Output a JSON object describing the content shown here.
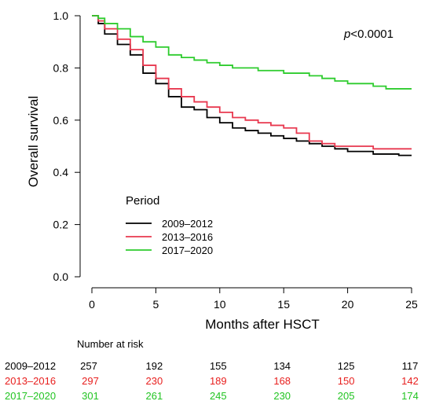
{
  "chart_data": {
    "type": "line",
    "title": "",
    "xlabel": "Months after HSCT",
    "ylabel": "Overall survival",
    "xlim": [
      0,
      25
    ],
    "ylim": [
      0,
      1
    ],
    "xticks": [
      0,
      5,
      10,
      15,
      20,
      25
    ],
    "yticks": [
      0.0,
      0.2,
      0.4,
      0.6,
      0.8,
      1.0
    ],
    "ytick_labels": [
      "0.0",
      "0.2",
      "0.4",
      "0.6",
      "0.8",
      "1.0"
    ],
    "grid": false,
    "annotation": {
      "p_italic": "p",
      "p_rest": "<0.0001"
    },
    "legend": {
      "title": "Period",
      "position": "lower-left"
    },
    "series": [
      {
        "name": "2009–2012",
        "color": "#000000",
        "x": [
          0,
          0.5,
          1,
          2,
          3,
          4,
          5,
          6,
          7,
          8,
          9,
          10,
          11,
          12,
          13,
          14,
          15,
          16,
          17,
          18,
          19,
          20,
          21,
          22,
          23,
          24,
          25
        ],
        "y": [
          1.0,
          0.97,
          0.93,
          0.89,
          0.85,
          0.78,
          0.74,
          0.69,
          0.65,
          0.64,
          0.61,
          0.59,
          0.57,
          0.56,
          0.55,
          0.54,
          0.53,
          0.52,
          0.51,
          0.5,
          0.49,
          0.48,
          0.48,
          0.47,
          0.47,
          0.465,
          0.465
        ]
      },
      {
        "name": "2013–2016",
        "color": "#e8384f",
        "x": [
          0,
          0.5,
          1,
          2,
          3,
          4,
          5,
          6,
          7,
          8,
          9,
          10,
          11,
          12,
          13,
          14,
          15,
          16,
          17,
          18,
          19,
          20,
          21,
          22,
          23,
          24,
          25
        ],
        "y": [
          1.0,
          0.98,
          0.95,
          0.91,
          0.87,
          0.81,
          0.76,
          0.72,
          0.69,
          0.67,
          0.65,
          0.63,
          0.61,
          0.6,
          0.59,
          0.58,
          0.57,
          0.55,
          0.52,
          0.51,
          0.5,
          0.5,
          0.5,
          0.49,
          0.49,
          0.49,
          0.49
        ]
      },
      {
        "name": "2017–2020",
        "color": "#2ecc2e",
        "x": [
          0,
          0.5,
          1,
          2,
          3,
          4,
          5,
          6,
          7,
          8,
          9,
          10,
          11,
          12,
          13,
          14,
          15,
          16,
          17,
          18,
          19,
          20,
          21,
          22,
          23,
          24,
          25
        ],
        "y": [
          1.0,
          0.99,
          0.97,
          0.95,
          0.92,
          0.9,
          0.88,
          0.85,
          0.84,
          0.83,
          0.82,
          0.81,
          0.8,
          0.8,
          0.79,
          0.79,
          0.78,
          0.78,
          0.77,
          0.76,
          0.75,
          0.74,
          0.74,
          0.73,
          0.72,
          0.72,
          0.72
        ]
      }
    ]
  },
  "risk_table": {
    "title": "Number at risk",
    "times": [
      0,
      5,
      10,
      15,
      20,
      25
    ],
    "rows": [
      {
        "label": "2009–2012",
        "color": "#000000",
        "values": [
          "257",
          "192",
          "155",
          "134",
          "125",
          "117"
        ]
      },
      {
        "label": "2013–2016",
        "color": "#e8201f",
        "values": [
          "297",
          "230",
          "189",
          "168",
          "150",
          "142"
        ]
      },
      {
        "label": "2017–2020",
        "color": "#22c422",
        "values": [
          "301",
          "261",
          "245",
          "230",
          "205",
          "174"
        ]
      }
    ]
  }
}
